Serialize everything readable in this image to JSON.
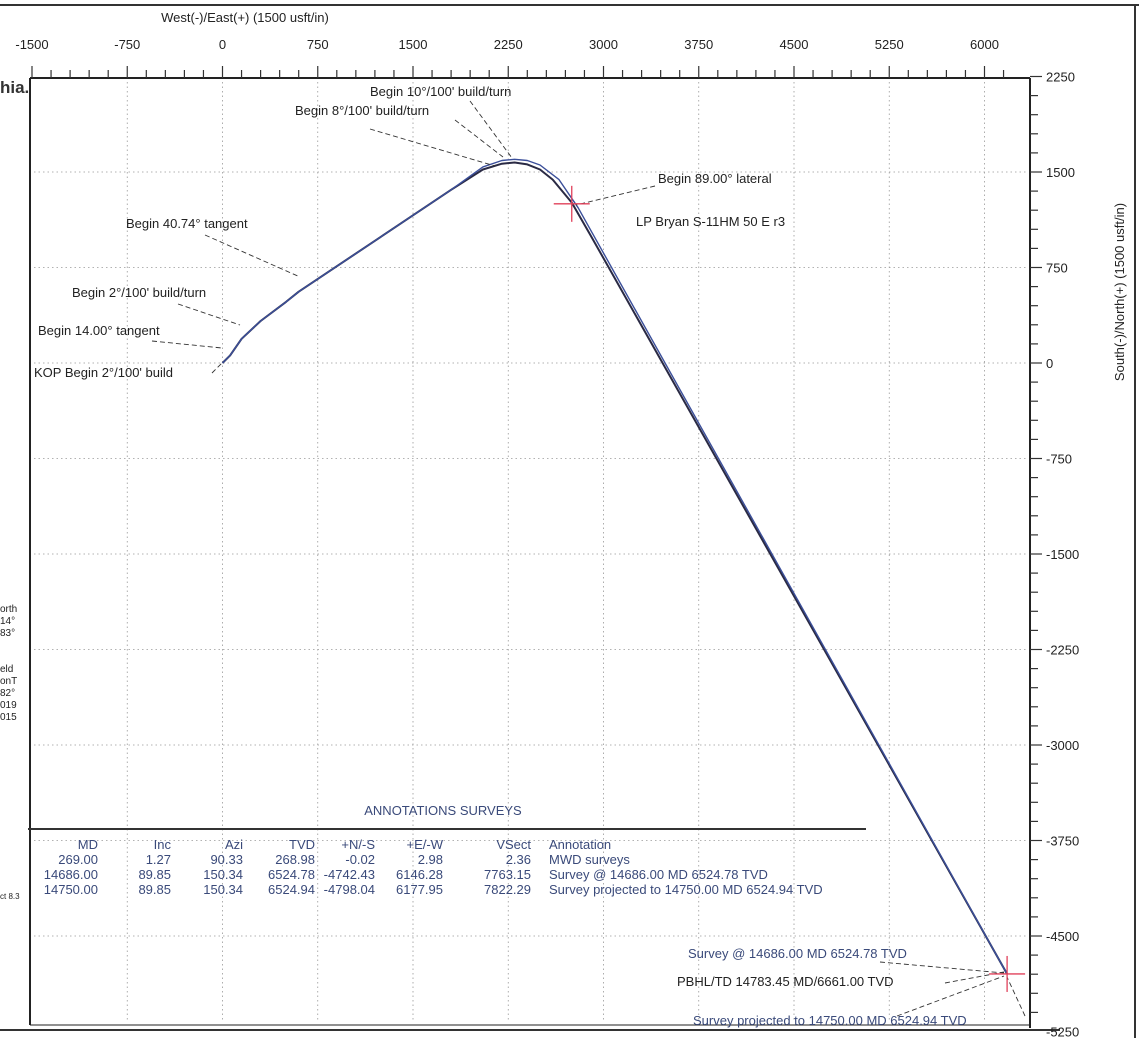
{
  "chart_data": {
    "type": "line",
    "title": "",
    "xlabel": "West(-)/East(+) (1500 usft/in)",
    "ylabel": "South(-)/North(+) (1500 usft/in)",
    "xlim": [
      -1500,
      6500
    ],
    "ylim": [
      -5250,
      2250
    ],
    "x_ticks": [
      -1500,
      -750,
      0,
      750,
      1500,
      2250,
      3000,
      3750,
      4500,
      5250,
      6000
    ],
    "y_ticks": [
      2250,
      1500,
      750,
      0,
      -750,
      -1500,
      -2250,
      -3000,
      -3750,
      -4500,
      -5250
    ],
    "series": [
      {
        "name": "",
        "x": [
          0,
          60,
          150,
          300,
          500,
          600,
          1200,
          1800,
          2050,
          2200,
          2300,
          2400,
          2500,
          2600,
          2750,
          2900,
          6146.28,
          6177.95
        ],
        "y": [
          0,
          60,
          190,
          330,
          480,
          560,
          960,
          1360,
          1520,
          1565,
          1575,
          1560,
          1520,
          1440,
          1260,
          1000,
          -4742.43,
          -4798.04
        ]
      },
      {
        "name": "",
        "x": [
          0,
          60,
          150,
          300,
          500,
          600,
          1200,
          1800,
          2050,
          2200,
          2300,
          2400,
          2500,
          2650,
          2800,
          6146.28,
          6177.95
        ],
        "y": [
          0,
          60,
          190,
          330,
          480,
          560,
          960,
          1360,
          1540,
          1590,
          1600,
          1590,
          1555,
          1440,
          1220,
          -4742.43,
          -4798.04
        ]
      }
    ],
    "annotations": [
      {
        "text": "Begin 10°/100' build/turn",
        "x": 2250,
        "y": 1560
      },
      {
        "text": "Begin 8°/100' build/turn",
        "x": 2150,
        "y": 1550
      },
      {
        "text": "Begin 89.00° lateral",
        "x": 2750,
        "y": 1250
      },
      {
        "text": "LP Bryan S-11HM 50 E r3",
        "x": 2750,
        "y": 1250
      },
      {
        "text": "Begin 40.74° tangent",
        "x": 600,
        "y": 560
      },
      {
        "text": "Begin 2°/100' build/turn",
        "x": 150,
        "y": 300
      },
      {
        "text": "Begin 14.00° tangent",
        "x": 0,
        "y": 50
      },
      {
        "text": "KOP Begin 2°/100' build",
        "x": 0,
        "y": 0
      },
      {
        "text": "Survey @ 14686.00 MD 6524.78 TVD",
        "x": 6146.28,
        "y": -4742.43
      },
      {
        "text": "PBHL/TD 14783.45 MD/6661.00 TVD",
        "x": 6177.95,
        "y": -4798.04
      },
      {
        "text": "Survey projected to 14750.00 MD 6524.94 TVD",
        "x": 6177.95,
        "y": -4798.04
      }
    ],
    "markers": [
      {
        "name": "LP Bryan S-11HM 50 E r3",
        "x": 2750,
        "y": 1250
      },
      {
        "name": "PBHL/TD",
        "x": 6177.95,
        "y": -4798.04
      }
    ],
    "grid": true,
    "table": {
      "title": "ANNOTATIONS SURVEYS",
      "columns": [
        "MD",
        "Inc",
        "Azi",
        "TVD",
        "+N/-S",
        "+E/-W",
        "VSect",
        "Annotation"
      ],
      "rows": [
        [
          "269.00",
          "1.27",
          "90.33",
          "268.98",
          "-0.02",
          "2.98",
          "2.36",
          "MWD surveys"
        ],
        [
          "14686.00",
          "89.85",
          "150.34",
          "6524.78",
          "-4742.43",
          "6146.28",
          "7763.15",
          "Survey @ 14686.00 MD 6524.78 TVD"
        ],
        [
          "14750.00",
          "89.85",
          "150.34",
          "6524.94",
          "-4798.04",
          "6177.95",
          "7822.29",
          "Survey projected to 14750.00 MD 6524.94 TVD"
        ]
      ]
    }
  },
  "fragments": {
    "top_left": "hia.",
    "left1": "orth",
    "left2": "14°",
    "left3": "83°",
    "left4": "eld",
    "left5": "onT",
    "left6": "82°",
    "left7": "019",
    "left8": "015",
    "left9": "ct 8.3"
  },
  "colors": {
    "path_dark": "#2a2a44",
    "path_blue": "#3b4f9a",
    "marker": "#e0405a",
    "grid": "#999999",
    "text_blue": "#3a4a7a"
  }
}
